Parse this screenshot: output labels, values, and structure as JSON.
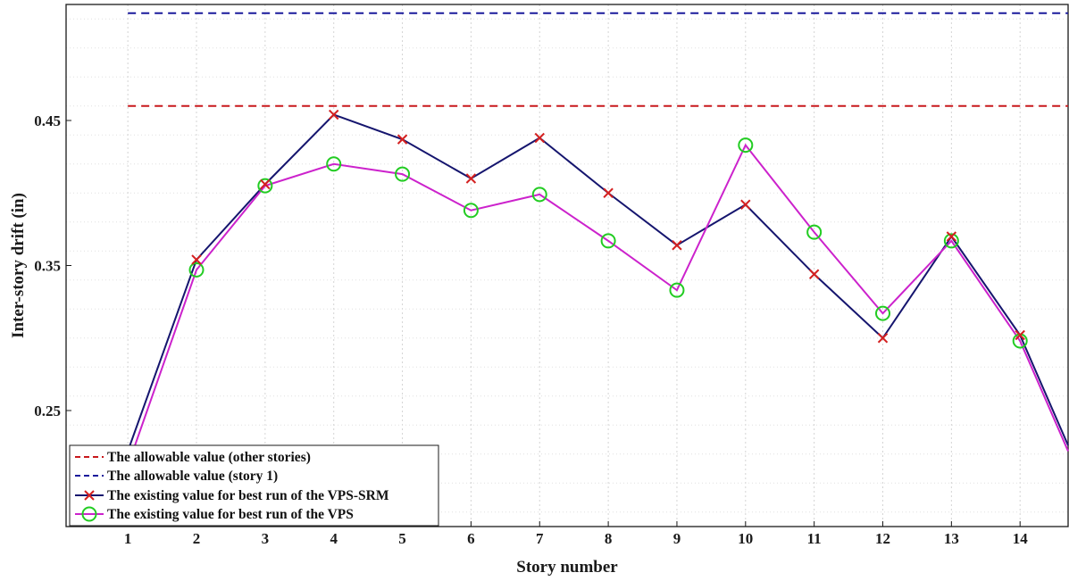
{
  "chart_data": {
    "type": "line",
    "xlabel": "Story number",
    "ylabel": "Inter-story drift (in)",
    "x": [
      1,
      2,
      3,
      4,
      5,
      6,
      7,
      8,
      9,
      10,
      11,
      12,
      13,
      14
    ],
    "xlim": [
      0.1,
      14.7
    ],
    "ylim": [
      0.17,
      0.53
    ],
    "yticks": [
      0.25,
      0.35,
      0.45
    ],
    "ytick_labels": [
      "0.25",
      "0.35",
      "0.45"
    ],
    "grid": true,
    "legend_position": "bottom-left",
    "series": [
      {
        "name": "The allowable value (other stories)",
        "style": "dashed",
        "color": "#c8181c",
        "values": [
          0.46,
          0.46,
          0.46,
          0.46,
          0.46,
          0.46,
          0.46,
          0.46,
          0.46,
          0.46,
          0.46,
          0.46,
          0.46,
          0.46
        ]
      },
      {
        "name": "The allowable value (story 1)",
        "style": "dashed",
        "color": "#1a1a9c",
        "values": [
          0.524,
          0.524,
          0.524,
          0.524,
          0.524,
          0.524,
          0.524,
          0.524,
          0.524,
          0.524,
          0.524,
          0.524,
          0.524,
          0.524
        ]
      },
      {
        "name": "The existing value for best run of the VPS-SRM",
        "style": "solid",
        "color": "#15156e",
        "marker": "x",
        "marker_color": "#d42020",
        "values": [
          0.222,
          0.354,
          0.406,
          0.454,
          0.437,
          0.41,
          0.438,
          0.4,
          0.364,
          0.392,
          0.344,
          0.3,
          0.37,
          0.302
        ],
        "end_value": 0.226
      },
      {
        "name": "The existing value for best run of the VPS",
        "style": "solid",
        "color": "#cc22cc",
        "marker": "o",
        "marker_color": "#22cc22",
        "values": [
          0.212,
          0.347,
          0.405,
          0.42,
          0.413,
          0.388,
          0.399,
          0.367,
          0.333,
          0.433,
          0.373,
          0.317,
          0.367,
          0.298
        ],
        "end_value": 0.222
      }
    ]
  }
}
